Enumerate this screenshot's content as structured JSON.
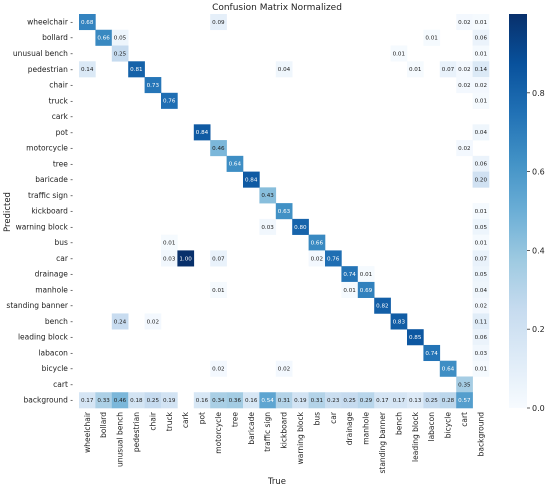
{
  "chart_data": {
    "type": "heatmap",
    "title": "Confusion Matrix Normalized",
    "xlabel": "True",
    "ylabel": "Predicted",
    "labels": [
      "wheelchair",
      "bollard",
      "unusual bench",
      "pedestrian",
      "chair",
      "truck",
      "cark",
      "pot",
      "motorcycle",
      "tree",
      "baricade",
      "traffic sign",
      "kickboard",
      "warning block",
      "bus",
      "car",
      "drainage",
      "manhole",
      "standing banner",
      "bench",
      "leading block",
      "labacon",
      "bicycle",
      "cart",
      "background"
    ],
    "colorbar_range": [
      0,
      1
    ],
    "colorbar_ticks": [
      "0.0",
      "0.2",
      "0.4",
      "0.6",
      "0.8"
    ],
    "colormap": "Blues",
    "cells": [
      {
        "r": 0,
        "c": 0,
        "v": 0.68
      },
      {
        "r": 0,
        "c": 8,
        "v": 0.09
      },
      {
        "r": 0,
        "c": 23,
        "v": 0.02
      },
      {
        "r": 0,
        "c": 24,
        "v": 0.01
      },
      {
        "r": 1,
        "c": 1,
        "v": 0.66
      },
      {
        "r": 1,
        "c": 2,
        "v": 0.05
      },
      {
        "r": 1,
        "c": 21,
        "v": 0.01
      },
      {
        "r": 1,
        "c": 24,
        "v": 0.06
      },
      {
        "r": 2,
        "c": 2,
        "v": 0.25
      },
      {
        "r": 2,
        "c": 19,
        "v": 0.01
      },
      {
        "r": 2,
        "c": 24,
        "v": 0.01
      },
      {
        "r": 3,
        "c": 0,
        "v": 0.14
      },
      {
        "r": 3,
        "c": 3,
        "v": 0.81
      },
      {
        "r": 3,
        "c": 12,
        "v": 0.04
      },
      {
        "r": 3,
        "c": 20,
        "v": 0.01
      },
      {
        "r": 3,
        "c": 22,
        "v": 0.07
      },
      {
        "r": 3,
        "c": 23,
        "v": 0.02
      },
      {
        "r": 3,
        "c": 24,
        "v": 0.14
      },
      {
        "r": 4,
        "c": 4,
        "v": 0.73
      },
      {
        "r": 4,
        "c": 23,
        "v": 0.02
      },
      {
        "r": 4,
        "c": 24,
        "v": 0.02
      },
      {
        "r": 5,
        "c": 5,
        "v": 0.76
      },
      {
        "r": 5,
        "c": 24,
        "v": 0.01
      },
      {
        "r": 7,
        "c": 7,
        "v": 0.84
      },
      {
        "r": 7,
        "c": 24,
        "v": 0.04
      },
      {
        "r": 8,
        "c": 8,
        "v": 0.46
      },
      {
        "r": 8,
        "c": 23,
        "v": 0.02
      },
      {
        "r": 9,
        "c": 9,
        "v": 0.64
      },
      {
        "r": 9,
        "c": 24,
        "v": 0.06
      },
      {
        "r": 10,
        "c": 10,
        "v": 0.84
      },
      {
        "r": 10,
        "c": 24,
        "v": 0.2
      },
      {
        "r": 11,
        "c": 11,
        "v": 0.43
      },
      {
        "r": 12,
        "c": 12,
        "v": 0.63
      },
      {
        "r": 12,
        "c": 24,
        "v": 0.01
      },
      {
        "r": 13,
        "c": 11,
        "v": 0.03
      },
      {
        "r": 13,
        "c": 13,
        "v": 0.8
      },
      {
        "r": 13,
        "c": 24,
        "v": 0.05
      },
      {
        "r": 14,
        "c": 5,
        "v": 0.01
      },
      {
        "r": 14,
        "c": 14,
        "v": 0.66
      },
      {
        "r": 14,
        "c": 24,
        "v": 0.01
      },
      {
        "r": 15,
        "c": 5,
        "v": 0.03
      },
      {
        "r": 15,
        "c": 6,
        "v": 1.0
      },
      {
        "r": 15,
        "c": 8,
        "v": 0.07
      },
      {
        "r": 15,
        "c": 14,
        "v": 0.02
      },
      {
        "r": 15,
        "c": 15,
        "v": 0.76
      },
      {
        "r": 15,
        "c": 24,
        "v": 0.07
      },
      {
        "r": 16,
        "c": 16,
        "v": 0.74
      },
      {
        "r": 16,
        "c": 17,
        "v": 0.01
      },
      {
        "r": 16,
        "c": 24,
        "v": 0.05
      },
      {
        "r": 17,
        "c": 8,
        "v": 0.01
      },
      {
        "r": 17,
        "c": 16,
        "v": 0.01
      },
      {
        "r": 17,
        "c": 17,
        "v": 0.69
      },
      {
        "r": 17,
        "c": 24,
        "v": 0.04
      },
      {
        "r": 18,
        "c": 18,
        "v": 0.82
      },
      {
        "r": 18,
        "c": 24,
        "v": 0.02
      },
      {
        "r": 19,
        "c": 2,
        "v": 0.24
      },
      {
        "r": 19,
        "c": 4,
        "v": 0.02
      },
      {
        "r": 19,
        "c": 19,
        "v": 0.83
      },
      {
        "r": 19,
        "c": 24,
        "v": 0.11
      },
      {
        "r": 20,
        "c": 20,
        "v": 0.85
      },
      {
        "r": 20,
        "c": 24,
        "v": 0.06
      },
      {
        "r": 21,
        "c": 21,
        "v": 0.74
      },
      {
        "r": 21,
        "c": 24,
        "v": 0.03
      },
      {
        "r": 22,
        "c": 8,
        "v": 0.02
      },
      {
        "r": 22,
        "c": 12,
        "v": 0.02
      },
      {
        "r": 22,
        "c": 22,
        "v": 0.64
      },
      {
        "r": 22,
        "c": 24,
        "v": 0.01
      },
      {
        "r": 23,
        "c": 23,
        "v": 0.35
      },
      {
        "r": 24,
        "c": 0,
        "v": 0.17
      },
      {
        "r": 24,
        "c": 1,
        "v": 0.33
      },
      {
        "r": 24,
        "c": 2,
        "v": 0.46
      },
      {
        "r": 24,
        "c": 3,
        "v": 0.18
      },
      {
        "r": 24,
        "c": 4,
        "v": 0.25
      },
      {
        "r": 24,
        "c": 5,
        "v": 0.19
      },
      {
        "r": 24,
        "c": 7,
        "v": 0.16
      },
      {
        "r": 24,
        "c": 8,
        "v": 0.34
      },
      {
        "r": 24,
        "c": 9,
        "v": 0.36
      },
      {
        "r": 24,
        "c": 10,
        "v": 0.16
      },
      {
        "r": 24,
        "c": 11,
        "v": 0.54
      },
      {
        "r": 24,
        "c": 12,
        "v": 0.31
      },
      {
        "r": 24,
        "c": 13,
        "v": 0.19
      },
      {
        "r": 24,
        "c": 14,
        "v": 0.31
      },
      {
        "r": 24,
        "c": 15,
        "v": 0.23
      },
      {
        "r": 24,
        "c": 16,
        "v": 0.25
      },
      {
        "r": 24,
        "c": 17,
        "v": 0.29
      },
      {
        "r": 24,
        "c": 18,
        "v": 0.17
      },
      {
        "r": 24,
        "c": 19,
        "v": 0.17
      },
      {
        "r": 24,
        "c": 20,
        "v": 0.13
      },
      {
        "r": 24,
        "c": 21,
        "v": 0.25
      },
      {
        "r": 24,
        "c": 22,
        "v": 0.28
      },
      {
        "r": 24,
        "c": 23,
        "v": 0.57
      }
    ]
  }
}
